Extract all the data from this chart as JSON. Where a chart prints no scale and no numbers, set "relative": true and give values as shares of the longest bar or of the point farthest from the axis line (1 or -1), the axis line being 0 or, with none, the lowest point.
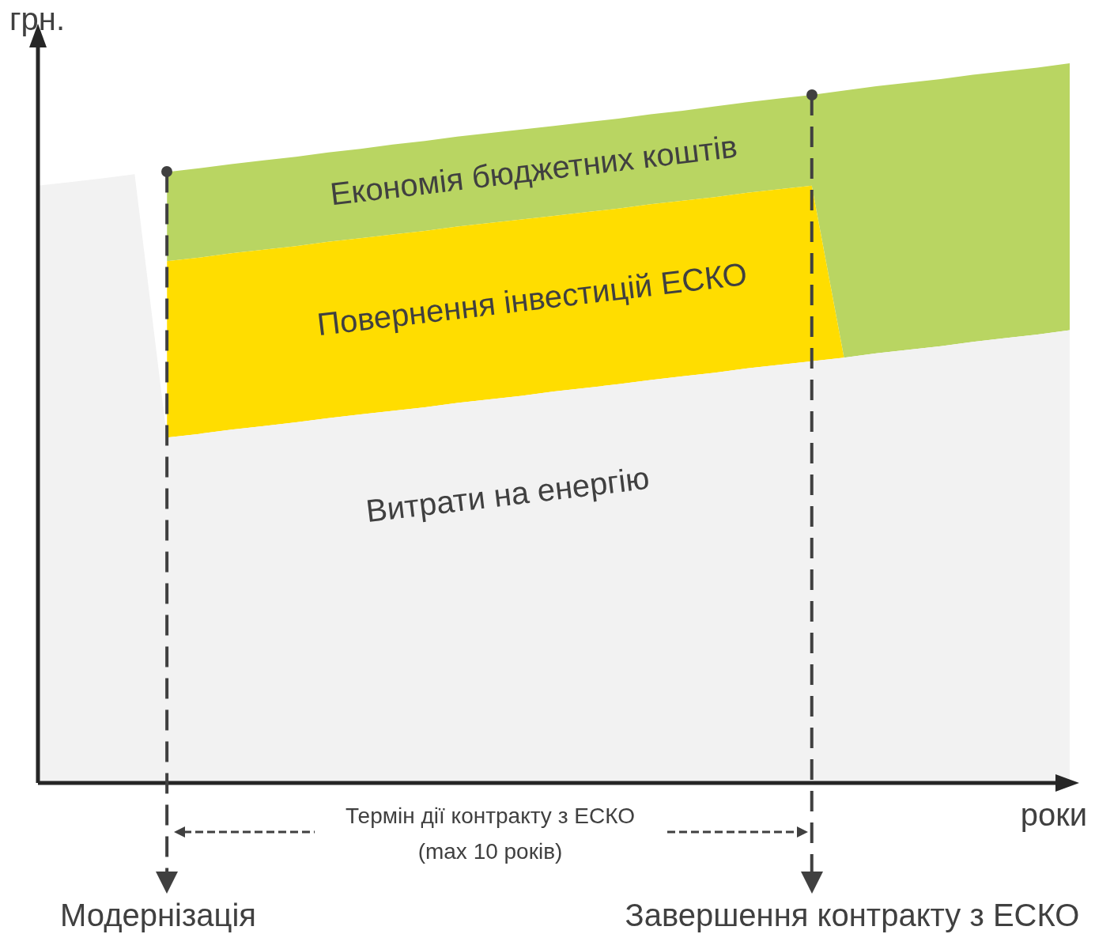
{
  "chart_data": {
    "type": "area",
    "relative": true,
    "stacked": true,
    "xlabel": "роки",
    "ylabel": "грн.",
    "legend": false,
    "categories": [
      null,
      null,
      null,
      null,
      null,
      null,
      null,
      null,
      null,
      null,
      null,
      null,
      null,
      null,
      null,
      null,
      null,
      null,
      null,
      null,
      null,
      null,
      null,
      null,
      null,
      null,
      null,
      null,
      null,
      null,
      null,
      null,
      null
    ],
    "series": [
      {
        "color": "#f2f2f2",
        "values": [
          0.83,
          0.835,
          0.84,
          0.846,
          0.48,
          0.485,
          0.491,
          0.496,
          0.501,
          0.507,
          0.512,
          0.517,
          0.522,
          0.528,
          0.533,
          0.538,
          0.544,
          0.549,
          0.554,
          0.56,
          0.565,
          0.57,
          0.576,
          0.581,
          0.586,
          0.591,
          0.597,
          0.602,
          0.607,
          0.613,
          0.618,
          0.623,
          0.629
        ]
      },
      {
        "color": "#ffdd00",
        "values": [
          null,
          null,
          null,
          null,
          0.245,
          0.245,
          0.245,
          0.245,
          0.245,
          0.245,
          0.245,
          0.245,
          0.245,
          0.245,
          0.245,
          0.245,
          0.244,
          0.244,
          0.244,
          0.244,
          0.244,
          0.244,
          0.244,
          0.244,
          0.244,
          0,
          0,
          0,
          0,
          0,
          0,
          0,
          0
        ]
      },
      {
        "color": "#b9d562",
        "values": [
          null,
          null,
          null,
          null,
          0.124,
          0.124,
          0.124,
          0.124,
          0.124,
          0.124,
          0.124,
          0.125,
          0.125,
          0.125,
          0.125,
          0.125,
          0.125,
          0.125,
          0.125,
          0.125,
          0.125,
          0.126,
          0.126,
          0.126,
          0.126,
          0.371,
          0.371,
          0.371,
          0.371,
          0.371,
          0.371,
          0.371,
          0.371
        ]
      }
    ],
    "annotations": [
      "Економія бюджетних коштів",
      "Повернення інвестицій ЕСКО",
      "Витрати на енергію",
      "Термін дії контракту з ЕСКО",
      "(max 10 років)",
      "Модернізація",
      "Завершення контракту з ЕСКО"
    ]
  }
}
